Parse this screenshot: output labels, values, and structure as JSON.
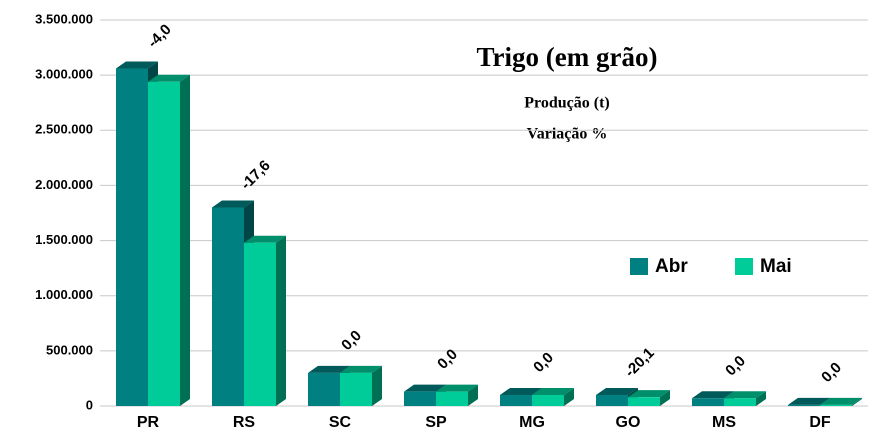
{
  "chart_data": {
    "type": "bar",
    "title": "Trigo (em grão)",
    "subtitle": "Produção (t)",
    "annotation": "Variação %",
    "categories": [
      "PR",
      "RS",
      "SC",
      "SP",
      "MG",
      "GO",
      "MS",
      "DF"
    ],
    "series": [
      {
        "name": "Abr",
        "color": "#008080",
        "values": [
          3060000,
          1800000,
          300000,
          130000,
          100000,
          100000,
          70000,
          10000
        ]
      },
      {
        "name": "Mai",
        "color": "#00cc99",
        "values": [
          2940000,
          1480000,
          300000,
          130000,
          100000,
          80000,
          70000,
          10000
        ]
      }
    ],
    "variation": {
      "values": [
        -4.0,
        -17.6,
        0.0,
        0.0,
        0.0,
        -20.1,
        0.0,
        0.0
      ],
      "value_labels": [
        "-4,0",
        "-17,6",
        "0,0",
        "0,0",
        "0,0",
        "-20,1",
        "0,0",
        "0,0"
      ]
    },
    "ylim": [
      0,
      3500000
    ],
    "yticks": [
      0,
      {
        "value": 500000,
        "label": "500.000"
      },
      {
        "value": 1000000,
        "label": "1.000.000"
      },
      {
        "value": 1500000,
        "label": "1.500.000"
      },
      {
        "value": 2000000,
        "label": "2.000.000"
      },
      {
        "value": 2500000,
        "label": "2.500.000"
      },
      {
        "value": 3000000,
        "label": "3.000.000"
      },
      {
        "value": 3500000,
        "label": "3.500.000"
      }
    ],
    "grid": true,
    "legend": "right"
  }
}
